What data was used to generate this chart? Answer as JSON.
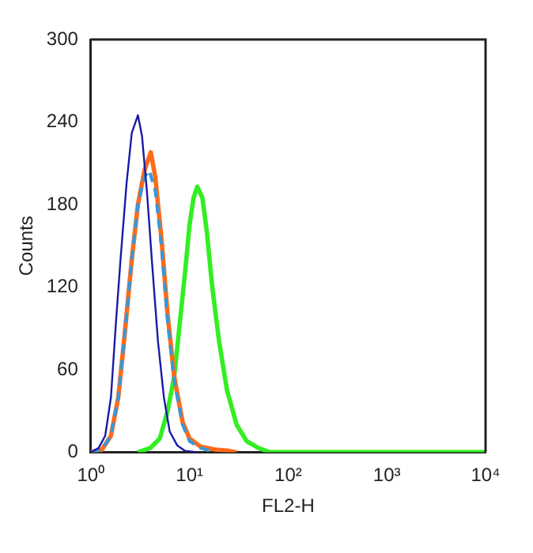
{
  "chart_data": {
    "type": "line",
    "xlabel": "FL2-H",
    "ylabel": "Counts",
    "log": "x",
    "grid": false,
    "legend": false,
    "marker": "none",
    "xlim": [
      1,
      10000
    ],
    "xticks": [
      {
        "value": 1,
        "label": "10⁰"
      },
      {
        "value": 10,
        "label": "10¹"
      },
      {
        "value": 100,
        "label": "10²"
      },
      {
        "value": 1000,
        "label": "10³"
      },
      {
        "value": 10000,
        "label": "10⁴"
      }
    ],
    "ylim": [
      0,
      300
    ],
    "yticks": [
      0,
      60,
      120,
      180,
      240,
      300
    ],
    "series": [
      {
        "color": "#1a1aa8",
        "x": [
          1.0,
          1.2,
          1.4,
          1.6,
          1.8,
          2.0,
          2.3,
          2.6,
          3.0,
          3.3,
          3.7,
          4.2,
          4.8,
          5.5,
          6.3,
          7.5,
          9,
          12
        ],
        "values": [
          0,
          3,
          12,
          40,
          95,
          140,
          195,
          232,
          245,
          230,
          190,
          135,
          80,
          40,
          15,
          5,
          1,
          0
        ]
      },
      {
        "color": "#3399dd",
        "line_style": "dashed",
        "x": [
          1.0,
          1.3,
          1.6,
          1.9,
          2.2,
          2.6,
          3.0,
          3.5,
          3.9,
          4.5,
          5.2,
          6.0,
          7.0,
          8.5,
          10,
          13,
          18
        ],
        "values": [
          0,
          2,
          12,
          40,
          85,
          140,
          180,
          200,
          205,
          190,
          150,
          95,
          52,
          20,
          8,
          3,
          0
        ]
      },
      {
        "color": "#ff6a1a",
        "x": [
          1.0,
          1.3,
          1.6,
          1.9,
          2.2,
          2.6,
          3.0,
          3.5,
          4.05,
          4.5,
          5.2,
          6.0,
          7.0,
          8.5,
          10,
          13,
          18,
          25,
          30
        ],
        "values": [
          0,
          2,
          12,
          40,
          85,
          140,
          180,
          205,
          218,
          200,
          155,
          100,
          55,
          22,
          10,
          4,
          2,
          1,
          0
        ]
      },
      {
        "color": "#33ee22",
        "x": [
          3,
          4,
          5,
          6,
          7,
          8,
          9,
          10,
          11,
          12,
          13.5,
          15,
          17,
          20,
          24,
          30,
          38,
          50,
          65,
          10000
        ],
        "values": [
          0,
          3,
          10,
          30,
          55,
          95,
          130,
          165,
          185,
          193,
          185,
          160,
          120,
          80,
          45,
          20,
          8,
          3,
          0,
          0
        ]
      }
    ]
  }
}
